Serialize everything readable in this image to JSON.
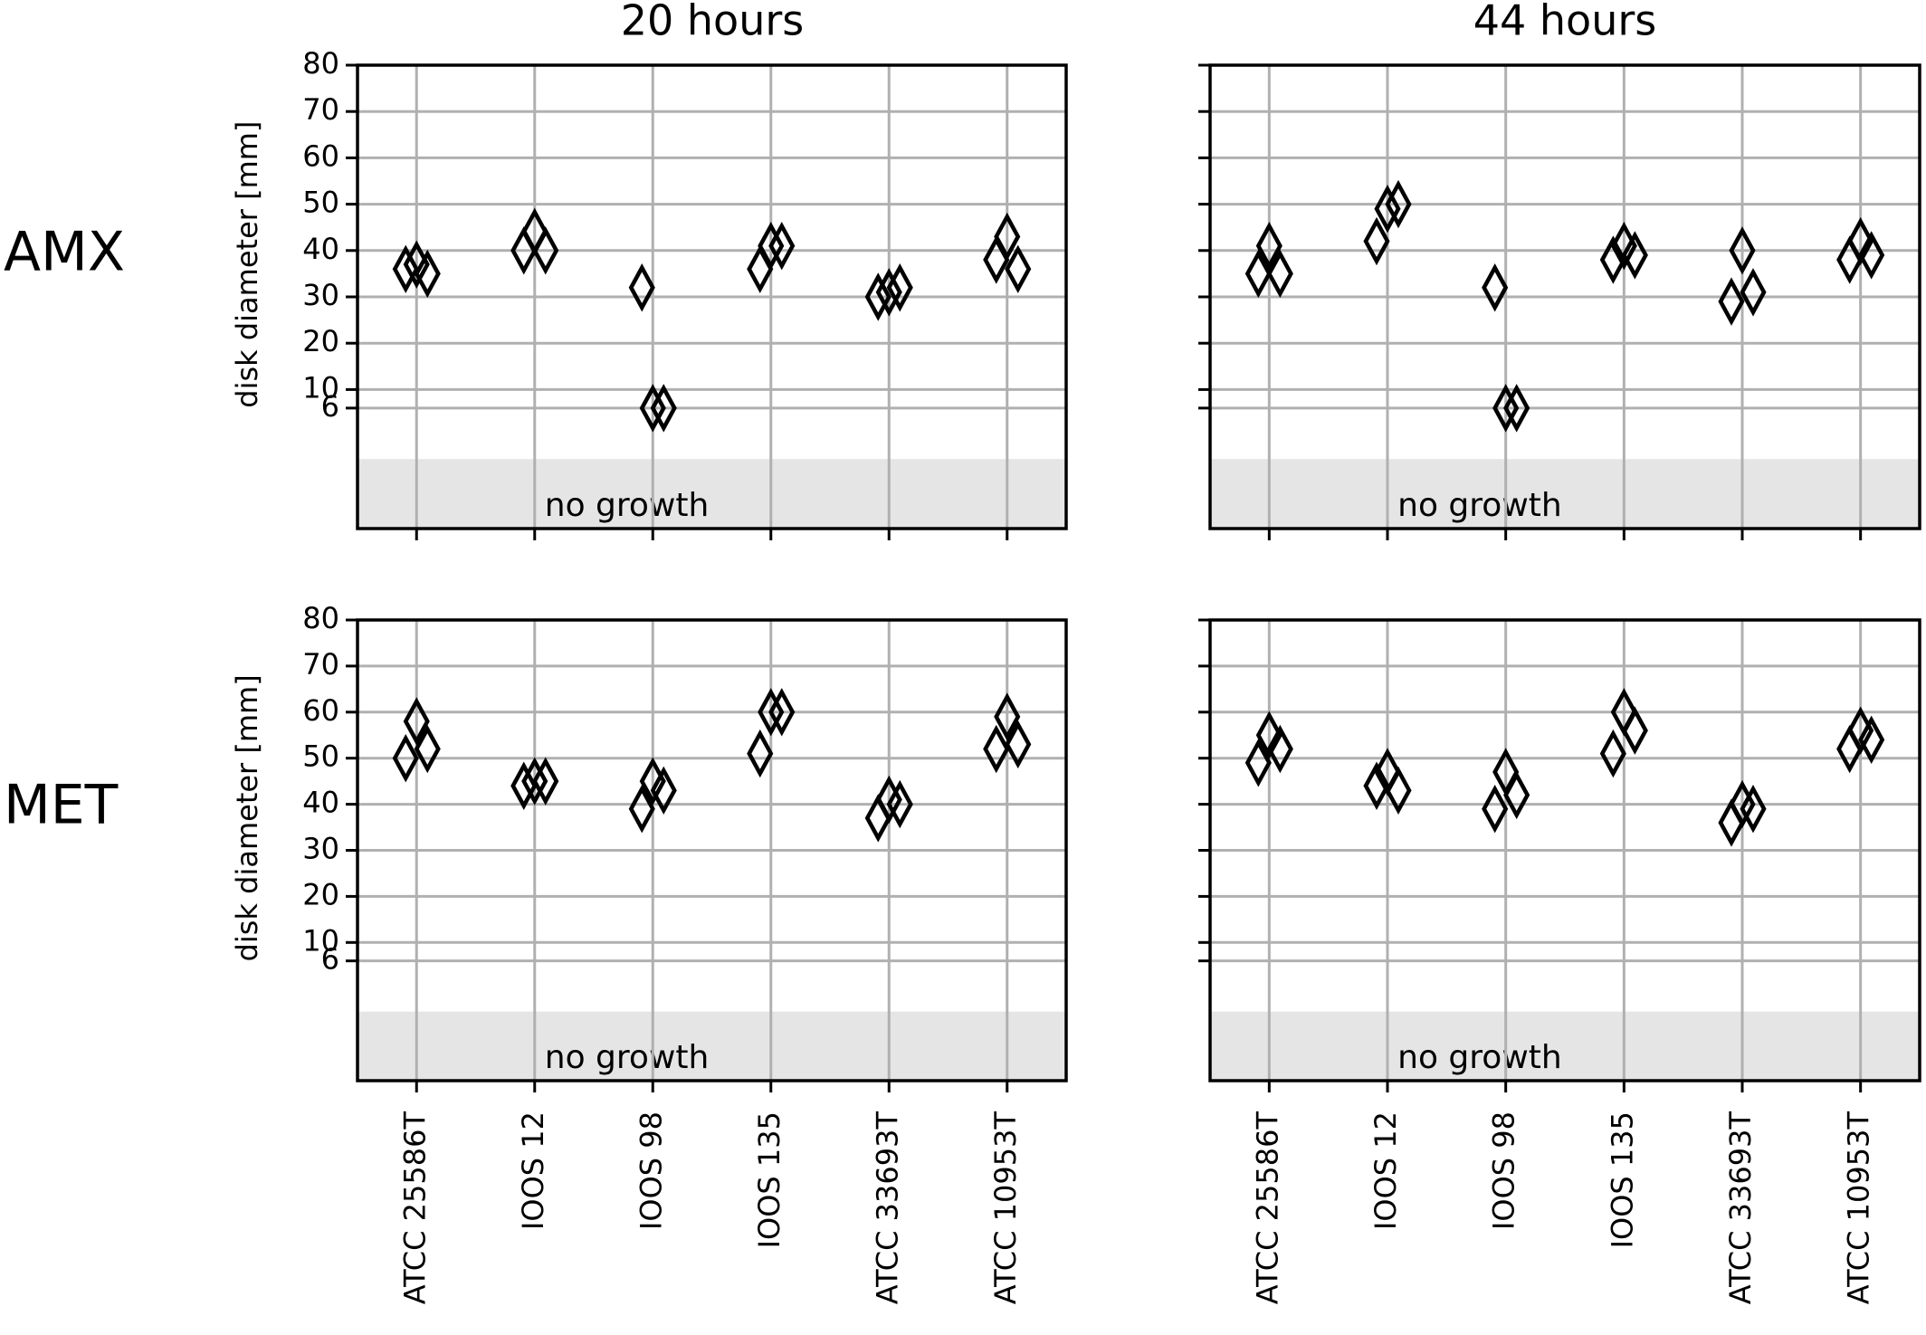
{
  "column_titles": [
    "20 hours",
    "44 hours"
  ],
  "row_labels": [
    "AMX",
    "MET"
  ],
  "chart_data": [
    {
      "type": "strip",
      "ylabel": "disk diameter [mm]",
      "ylim": [
        -20,
        80
      ],
      "yticks": [
        6,
        10,
        20,
        30,
        40,
        50,
        60,
        70,
        80
      ],
      "show_ytick_labels": true,
      "grid": true,
      "shaded_range": [
        -20,
        -5
      ],
      "shaded_label": "no growth",
      "series": [
        {
          "color": "#000000",
          "values": [
            36,
            40,
            32,
            36,
            30,
            38
          ]
        },
        {
          "color": "#000000",
          "values": [
            37,
            44,
            6,
            41,
            31,
            43
          ]
        },
        {
          "color": "#000000",
          "values": [
            35,
            40,
            6,
            41,
            32,
            36
          ]
        }
      ]
    },
    {
      "type": "strip",
      "ylim": [
        -20,
        80
      ],
      "yticks": [
        6,
        10,
        20,
        30,
        40,
        50,
        60,
        70,
        80
      ],
      "show_ytick_labels": false,
      "grid": true,
      "shaded_range": [
        -20,
        -5
      ],
      "shaded_label": "no growth",
      "series": [
        {
          "color": "#000000",
          "values": [
            35,
            42,
            32,
            38,
            29,
            38
          ]
        },
        {
          "color": "#000000",
          "values": [
            41,
            49,
            6,
            41,
            40,
            42
          ]
        },
        {
          "color": "#000000",
          "values": [
            35,
            50,
            6,
            39,
            31,
            39
          ]
        }
      ]
    },
    {
      "type": "strip",
      "ylabel": "disk diameter [mm]",
      "ylim": [
        -20,
        80
      ],
      "yticks": [
        6,
        10,
        20,
        30,
        40,
        50,
        60,
        70,
        80
      ],
      "show_ytick_labels": true,
      "grid": true,
      "shaded_range": [
        -20,
        -5
      ],
      "shaded_label": "no growth",
      "categories": [
        "ATCC 25586T",
        "IOOS 12",
        "IOOS 98",
        "IOOS 135",
        "ATCC 33693T",
        "ATCC 10953T"
      ],
      "series": [
        {
          "color": "#000000",
          "values": [
            50,
            44,
            39,
            51,
            37,
            52
          ]
        },
        {
          "color": "#000000",
          "values": [
            58,
            45,
            45,
            60,
            41,
            59
          ]
        },
        {
          "color": "#000000",
          "values": [
            52,
            45,
            43,
            60,
            40,
            53
          ]
        }
      ]
    },
    {
      "type": "strip",
      "ylim": [
        -20,
        80
      ],
      "yticks": [
        6,
        10,
        20,
        30,
        40,
        50,
        60,
        70,
        80
      ],
      "show_ytick_labels": false,
      "grid": true,
      "shaded_range": [
        -20,
        -5
      ],
      "shaded_label": "no growth",
      "categories": [
        "ATCC 25586T",
        "IOOS 12",
        "IOOS 98",
        "IOOS 135",
        "ATCC 33693T",
        "ATCC 10953T"
      ],
      "series": [
        {
          "color": "#000000",
          "values": [
            49,
            44,
            39,
            51,
            36,
            52
          ]
        },
        {
          "color": "#000000",
          "values": [
            55,
            47,
            47,
            60,
            40,
            56
          ]
        },
        {
          "color": "#000000",
          "values": [
            52,
            43,
            42,
            56,
            39,
            54
          ]
        }
      ]
    }
  ]
}
